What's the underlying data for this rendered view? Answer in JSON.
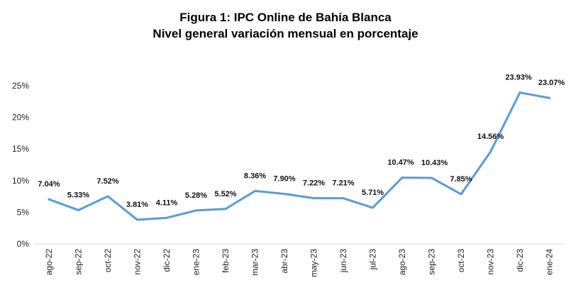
{
  "chart_data": {
    "type": "line",
    "title": "Figura 1: IPC Online de Bahía Blanca",
    "subtitle": "Nivel general variación mensual en porcentaje",
    "categories": [
      "ago-22",
      "sep-22",
      "oct-22",
      "nov-22",
      "dic-22",
      "ene-23",
      "feb-23",
      "mar-23",
      "abr-23",
      "may-23",
      "jun-23",
      "jul-23",
      "ago-23",
      "sep-23",
      "oct-23",
      "nov-23",
      "dic-23",
      "ene-24"
    ],
    "series": [
      {
        "values": [
          7.04,
          5.33,
          7.52,
          3.81,
          4.11,
          5.28,
          5.52,
          8.36,
          7.9,
          7.22,
          7.21,
          5.71,
          10.47,
          10.43,
          7.85,
          14.56,
          23.93,
          23.07
        ],
        "labels": [
          "7.04%",
          "5.33%",
          "7.52%",
          "3.81%",
          "4.11%",
          "5.28%",
          "5.52%",
          "8.36%",
          "7.90%",
          "7.22%",
          "7.21%",
          "5.71%",
          "10.47%",
          "10.43%",
          "7.85%",
          "14.56%",
          "23.93%",
          "23.07%"
        ],
        "color": "#5b9bd5"
      }
    ],
    "yticks": [
      "0%",
      "5%",
      "10%",
      "15%",
      "20%",
      "25%"
    ],
    "ylim": [
      0,
      25
    ],
    "grid": false,
    "legend": "none"
  }
}
